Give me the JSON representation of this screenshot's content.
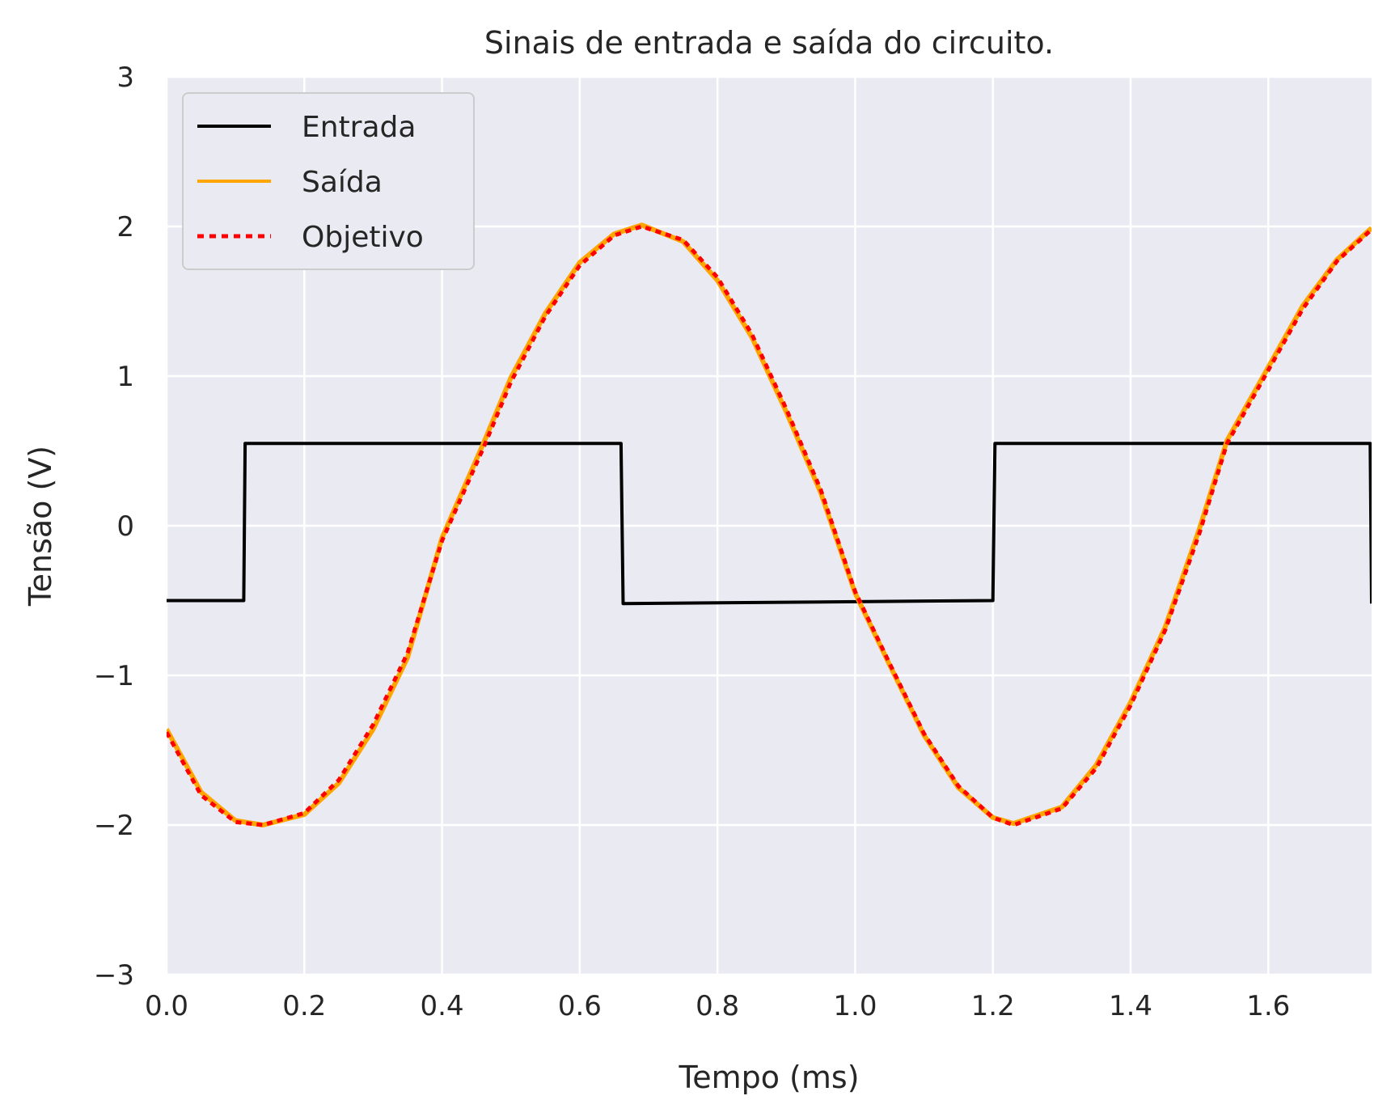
{
  "chart_data": {
    "type": "line",
    "title": "Sinais de entrada e saída do circuito.",
    "xlabel": "Tempo (ms)",
    "ylabel": "Tensão (V)",
    "xlim": [
      0,
      1.75
    ],
    "ylim": [
      -3,
      3
    ],
    "xticks": [
      0.0,
      0.2,
      0.4,
      0.6,
      0.8,
      1.0,
      1.2,
      1.4,
      1.6
    ],
    "xtick_labels": [
      "0.0",
      "0.2",
      "0.4",
      "0.6",
      "0.8",
      "1.0",
      "1.2",
      "1.4",
      "1.6"
    ],
    "yticks": [
      -3,
      -2,
      -1,
      0,
      1,
      2,
      3
    ],
    "ytick_labels": [
      "−3",
      "−2",
      "−1",
      "0",
      "1",
      "2",
      "3"
    ],
    "grid": true,
    "legend_position": "top-left",
    "series": [
      {
        "name": "Entrada",
        "color": "#000000",
        "style": "solid",
        "x": [
          0.0,
          0.112,
          0.114,
          0.66,
          0.663,
          1.2,
          1.203,
          1.748,
          1.75
        ],
        "y": [
          -0.5,
          -0.5,
          0.55,
          0.55,
          -0.52,
          -0.5,
          0.55,
          0.55,
          -0.52
        ]
      },
      {
        "name": "Saída",
        "color": "#ffa500",
        "style": "solid",
        "x": [
          0.0,
          0.05,
          0.1,
          0.14,
          0.2,
          0.25,
          0.3,
          0.35,
          0.4,
          0.46,
          0.5,
          0.55,
          0.6,
          0.65,
          0.69,
          0.75,
          0.8,
          0.85,
          0.9,
          0.95,
          1.0,
          1.05,
          1.1,
          1.15,
          1.2,
          1.23,
          1.3,
          1.35,
          1.4,
          1.45,
          1.5,
          1.54,
          1.6,
          1.65,
          1.7,
          1.75
        ],
        "y": [
          -1.36,
          -1.78,
          -1.97,
          -2.0,
          -1.93,
          -1.72,
          -1.36,
          -0.88,
          -0.08,
          0.55,
          0.99,
          1.42,
          1.76,
          1.95,
          2.01,
          1.9,
          1.64,
          1.26,
          0.76,
          0.22,
          -0.45,
          -0.93,
          -1.4,
          -1.75,
          -1.95,
          -1.99,
          -1.88,
          -1.6,
          -1.18,
          -0.68,
          -0.02,
          0.57,
          1.06,
          1.47,
          1.78,
          1.99
        ]
      },
      {
        "name": "Objetivo",
        "color": "#ff0000",
        "style": "dotted",
        "x": [
          0.0,
          0.05,
          0.1,
          0.14,
          0.2,
          0.25,
          0.3,
          0.35,
          0.4,
          0.46,
          0.5,
          0.55,
          0.6,
          0.65,
          0.69,
          0.75,
          0.8,
          0.85,
          0.9,
          0.95,
          1.0,
          1.05,
          1.1,
          1.15,
          1.2,
          1.23,
          1.3,
          1.35,
          1.4,
          1.45,
          1.5,
          1.54,
          1.6,
          1.65,
          1.7,
          1.75
        ],
        "y": [
          -1.38,
          -1.8,
          -1.98,
          -2.0,
          -1.92,
          -1.7,
          -1.33,
          -0.85,
          -0.1,
          0.52,
          0.96,
          1.4,
          1.74,
          1.94,
          2.0,
          1.91,
          1.66,
          1.28,
          0.78,
          0.24,
          -0.44,
          -0.92,
          -1.39,
          -1.74,
          -1.95,
          -2.0,
          -1.89,
          -1.62,
          -1.2,
          -0.7,
          -0.05,
          0.55,
          1.04,
          1.45,
          1.77,
          1.98
        ]
      }
    ]
  }
}
